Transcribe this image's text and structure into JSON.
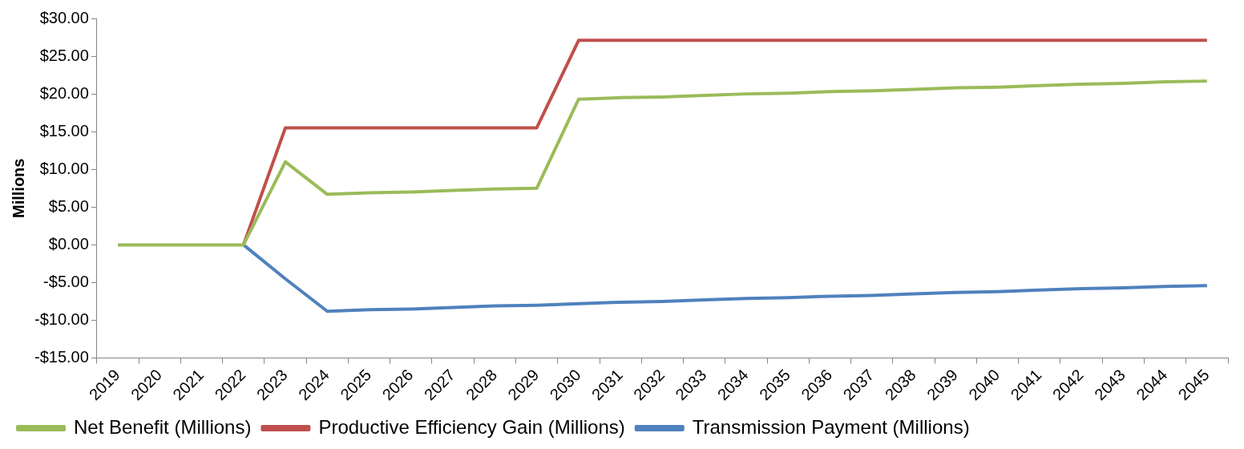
{
  "chart_data": {
    "type": "line",
    "ylabel": "Millions",
    "categories": [
      "2019",
      "2020",
      "2021",
      "2022",
      "2023",
      "2024",
      "2025",
      "2026",
      "2027",
      "2028",
      "2029",
      "2030",
      "2031",
      "2032",
      "2033",
      "2034",
      "2035",
      "2036",
      "2037",
      "2038",
      "2039",
      "2040",
      "2041",
      "2042",
      "2043",
      "2044",
      "2045"
    ],
    "series": [
      {
        "name": "Transmission Payment (Millions)",
        "color": "#4f81bd",
        "values": [
          null,
          null,
          null,
          0,
          -4.5,
          -8.8,
          -8.6,
          -8.5,
          -8.3,
          -8.1,
          -8.0,
          -7.8,
          -7.6,
          -7.5,
          -7.3,
          -7.1,
          -7.0,
          -6.8,
          -6.7,
          -6.5,
          -6.3,
          -6.2,
          -6.0,
          -5.8,
          -5.7,
          -5.5,
          -5.4
        ]
      },
      {
        "name": "Productive Efficiency Gain (Millions)",
        "color": "#c0504d",
        "values": [
          null,
          null,
          null,
          0,
          15.5,
          15.5,
          15.5,
          15.5,
          15.5,
          15.5,
          15.5,
          27.1,
          27.1,
          27.1,
          27.1,
          27.1,
          27.1,
          27.1,
          27.1,
          27.1,
          27.1,
          27.1,
          27.1,
          27.1,
          27.1,
          27.1,
          27.1
        ]
      },
      {
        "name": "Net Benefit (Millions)",
        "color": "#9bbb59",
        "values": [
          0,
          0,
          0,
          0,
          11.0,
          6.7,
          6.9,
          7.0,
          7.2,
          7.4,
          7.5,
          19.3,
          19.5,
          19.6,
          19.8,
          20.0,
          20.1,
          20.3,
          20.4,
          20.6,
          20.8,
          20.9,
          21.1,
          21.3,
          21.4,
          21.6,
          21.7
        ]
      }
    ],
    "ylim": [
      -15,
      30
    ],
    "yticks": [
      {
        "value": -15,
        "label": "-$15.00"
      },
      {
        "value": -10,
        "label": "-$10.00"
      },
      {
        "value": -5,
        "label": "-$5.00"
      },
      {
        "value": 0,
        "label": "$0.00"
      },
      {
        "value": 5,
        "label": "$5.00"
      },
      {
        "value": 10,
        "label": "$10.00"
      },
      {
        "value": 15,
        "label": "$15.00"
      },
      {
        "value": 20,
        "label": "$20.00"
      },
      {
        "value": 25,
        "label": "$25.00"
      },
      {
        "value": 30,
        "label": "$30.00"
      }
    ],
    "grid": false,
    "legend": "bottom",
    "marker": "none",
    "line_style": "solid"
  }
}
